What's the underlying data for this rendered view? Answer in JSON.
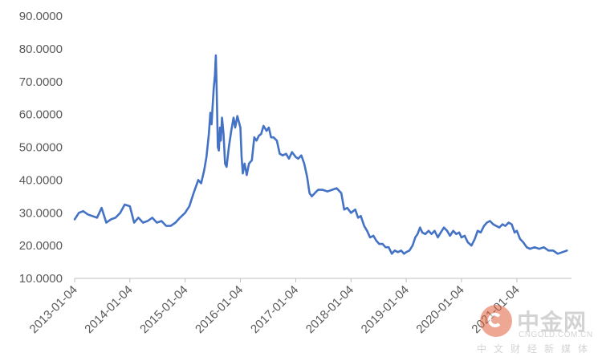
{
  "chart_data": {
    "type": "line",
    "title": "",
    "xlabel": "",
    "ylabel": "",
    "x_tick_labels": [
      "2013-01-04",
      "2014-01-04",
      "2015-01-04",
      "2016-01-04",
      "2017-01-04",
      "2018-01-04",
      "2019-01-04",
      "2020-01-04",
      "2021-01-04"
    ],
    "y_tick_labels": [
      "10.0000",
      "20.0000",
      "30.0000",
      "40.0000",
      "50.0000",
      "60.0000",
      "70.0000",
      "80.0000",
      "90.0000"
    ],
    "xlim": [
      "2013-01-04",
      "2021-12-31"
    ],
    "ylim": [
      10,
      90
    ],
    "grid": false,
    "legend": "none",
    "series": [
      {
        "color": "#4472c4",
        "points": [
          [
            "2013-01-04",
            28.0
          ],
          [
            "2013-02-01",
            30.0
          ],
          [
            "2013-03-01",
            30.5
          ],
          [
            "2013-04-01",
            29.5
          ],
          [
            "2013-05-01",
            29.0
          ],
          [
            "2013-06-01",
            28.5
          ],
          [
            "2013-07-01",
            31.5
          ],
          [
            "2013-08-01",
            27.0
          ],
          [
            "2013-09-01",
            28.0
          ],
          [
            "2013-10-01",
            28.5
          ],
          [
            "2013-11-01",
            30.0
          ],
          [
            "2013-12-01",
            32.5
          ],
          [
            "2014-01-04",
            32.0
          ],
          [
            "2014-02-01",
            27.0
          ],
          [
            "2014-03-01",
            28.5
          ],
          [
            "2014-04-01",
            27.0
          ],
          [
            "2014-05-01",
            27.5
          ],
          [
            "2014-06-01",
            28.5
          ],
          [
            "2014-07-01",
            27.0
          ],
          [
            "2014-08-01",
            27.5
          ],
          [
            "2014-09-01",
            26.0
          ],
          [
            "2014-10-01",
            26.0
          ],
          [
            "2014-11-01",
            27.0
          ],
          [
            "2014-12-01",
            28.5
          ],
          [
            "2015-01-04",
            30.0
          ],
          [
            "2015-02-01",
            32.0
          ],
          [
            "2015-03-01",
            36.0
          ],
          [
            "2015-04-01",
            40.0
          ],
          [
            "2015-04-20",
            39.0
          ],
          [
            "2015-05-10",
            43.0
          ],
          [
            "2015-05-25",
            47.0
          ],
          [
            "2015-06-10",
            54.0
          ],
          [
            "2015-06-20",
            60.5
          ],
          [
            "2015-06-28",
            57.0
          ],
          [
            "2015-07-05",
            63.0
          ],
          [
            "2015-07-12",
            68.0
          ],
          [
            "2015-07-20",
            72.0
          ],
          [
            "2015-07-26",
            78.0
          ],
          [
            "2015-08-01",
            67.0
          ],
          [
            "2015-08-08",
            50.0
          ],
          [
            "2015-08-15",
            49.0
          ],
          [
            "2015-08-22",
            56.0
          ],
          [
            "2015-08-28",
            52.0
          ],
          [
            "2015-09-05",
            59.0
          ],
          [
            "2015-09-15",
            54.0
          ],
          [
            "2015-09-25",
            45.0
          ],
          [
            "2015-10-05",
            44.0
          ],
          [
            "2015-10-20",
            50.0
          ],
          [
            "2015-11-05",
            55.0
          ],
          [
            "2015-11-20",
            59.0
          ],
          [
            "2015-12-01",
            56.0
          ],
          [
            "2015-12-15",
            59.5
          ],
          [
            "2016-01-04",
            56.0
          ],
          [
            "2016-01-12",
            47.0
          ],
          [
            "2016-01-20",
            42.0
          ],
          [
            "2016-02-01",
            45.0
          ],
          [
            "2016-02-15",
            41.5
          ],
          [
            "2016-03-01",
            45.0
          ],
          [
            "2016-03-20",
            46.0
          ],
          [
            "2016-04-05",
            53.0
          ],
          [
            "2016-04-20",
            52.0
          ],
          [
            "2016-05-05",
            53.5
          ],
          [
            "2016-05-20",
            54.0
          ],
          [
            "2016-06-05",
            56.5
          ],
          [
            "2016-06-25",
            55.0
          ],
          [
            "2016-07-10",
            56.0
          ],
          [
            "2016-07-25",
            53.0
          ],
          [
            "2016-08-10",
            53.0
          ],
          [
            "2016-09-01",
            52.0
          ],
          [
            "2016-09-20",
            48.0
          ],
          [
            "2016-10-10",
            47.5
          ],
          [
            "2016-11-01",
            48.0
          ],
          [
            "2016-11-20",
            46.5
          ],
          [
            "2016-12-10",
            48.5
          ],
          [
            "2017-01-04",
            47.0
          ],
          [
            "2017-01-20",
            46.5
          ],
          [
            "2017-02-10",
            47.5
          ],
          [
            "2017-03-01",
            45.0
          ],
          [
            "2017-03-20",
            41.0
          ],
          [
            "2017-04-05",
            36.0
          ],
          [
            "2017-04-20",
            35.0
          ],
          [
            "2017-05-10",
            36.0
          ],
          [
            "2017-06-01",
            37.0
          ],
          [
            "2017-07-01",
            37.0
          ],
          [
            "2017-08-01",
            36.5
          ],
          [
            "2017-09-01",
            37.0
          ],
          [
            "2017-10-01",
            37.5
          ],
          [
            "2017-11-01",
            36.0
          ],
          [
            "2017-11-20",
            31.0
          ],
          [
            "2017-12-10",
            31.5
          ],
          [
            "2018-01-04",
            30.0
          ],
          [
            "2018-02-01",
            31.0
          ],
          [
            "2018-02-20",
            28.5
          ],
          [
            "2018-03-10",
            29.0
          ],
          [
            "2018-04-01",
            26.0
          ],
          [
            "2018-04-20",
            24.5
          ],
          [
            "2018-05-10",
            22.5
          ],
          [
            "2018-06-01",
            23.0
          ],
          [
            "2018-06-20",
            21.5
          ],
          [
            "2018-07-10",
            20.5
          ],
          [
            "2018-08-01",
            20.5
          ],
          [
            "2018-08-20",
            19.5
          ],
          [
            "2018-09-10",
            19.5
          ],
          [
            "2018-10-01",
            17.5
          ],
          [
            "2018-10-20",
            18.5
          ],
          [
            "2018-11-10",
            18.0
          ],
          [
            "2018-12-01",
            18.5
          ],
          [
            "2018-12-20",
            17.5
          ],
          [
            "2019-01-04",
            18.0
          ],
          [
            "2019-01-25",
            18.5
          ],
          [
            "2019-02-15",
            20.0
          ],
          [
            "2019-03-05",
            22.5
          ],
          [
            "2019-03-20",
            23.5
          ],
          [
            "2019-04-05",
            25.5
          ],
          [
            "2019-04-20",
            24.0
          ],
          [
            "2019-05-10",
            23.5
          ],
          [
            "2019-06-01",
            24.5
          ],
          [
            "2019-06-20",
            23.5
          ],
          [
            "2019-07-10",
            24.5
          ],
          [
            "2019-08-01",
            22.5
          ],
          [
            "2019-08-20",
            24.0
          ],
          [
            "2019-09-10",
            25.5
          ],
          [
            "2019-10-01",
            24.5
          ],
          [
            "2019-10-20",
            23.0
          ],
          [
            "2019-11-10",
            24.5
          ],
          [
            "2019-12-01",
            23.5
          ],
          [
            "2019-12-20",
            24.0
          ],
          [
            "2020-01-04",
            22.5
          ],
          [
            "2020-01-25",
            23.0
          ],
          [
            "2020-02-15",
            21.0
          ],
          [
            "2020-03-10",
            20.0
          ],
          [
            "2020-04-01",
            22.0
          ],
          [
            "2020-04-20",
            24.5
          ],
          [
            "2020-05-10",
            24.0
          ],
          [
            "2020-06-01",
            26.0
          ],
          [
            "2020-06-20",
            27.0
          ],
          [
            "2020-07-10",
            27.5
          ],
          [
            "2020-08-01",
            26.5
          ],
          [
            "2020-08-20",
            26.0
          ],
          [
            "2020-09-10",
            25.5
          ],
          [
            "2020-10-01",
            26.5
          ],
          [
            "2020-10-20",
            26.0
          ],
          [
            "2020-11-10",
            27.0
          ],
          [
            "2020-12-01",
            26.5
          ],
          [
            "2020-12-20",
            24.0
          ],
          [
            "2021-01-04",
            24.5
          ],
          [
            "2021-01-25",
            22.0
          ],
          [
            "2021-02-15",
            21.0
          ],
          [
            "2021-03-10",
            19.5
          ],
          [
            "2021-04-01",
            19.0
          ],
          [
            "2021-05-01",
            19.5
          ],
          [
            "2021-06-01",
            19.0
          ],
          [
            "2021-07-01",
            19.5
          ],
          [
            "2021-08-01",
            18.5
          ],
          [
            "2021-09-01",
            18.5
          ],
          [
            "2021-10-01",
            17.5
          ],
          [
            "2021-11-01",
            18.0
          ],
          [
            "2021-12-01",
            18.5
          ]
        ]
      }
    ]
  },
  "watermark": {
    "name": "中金网",
    "domain": "CNGOLD.COM.CN",
    "tagline": "中文财经新媒体"
  }
}
